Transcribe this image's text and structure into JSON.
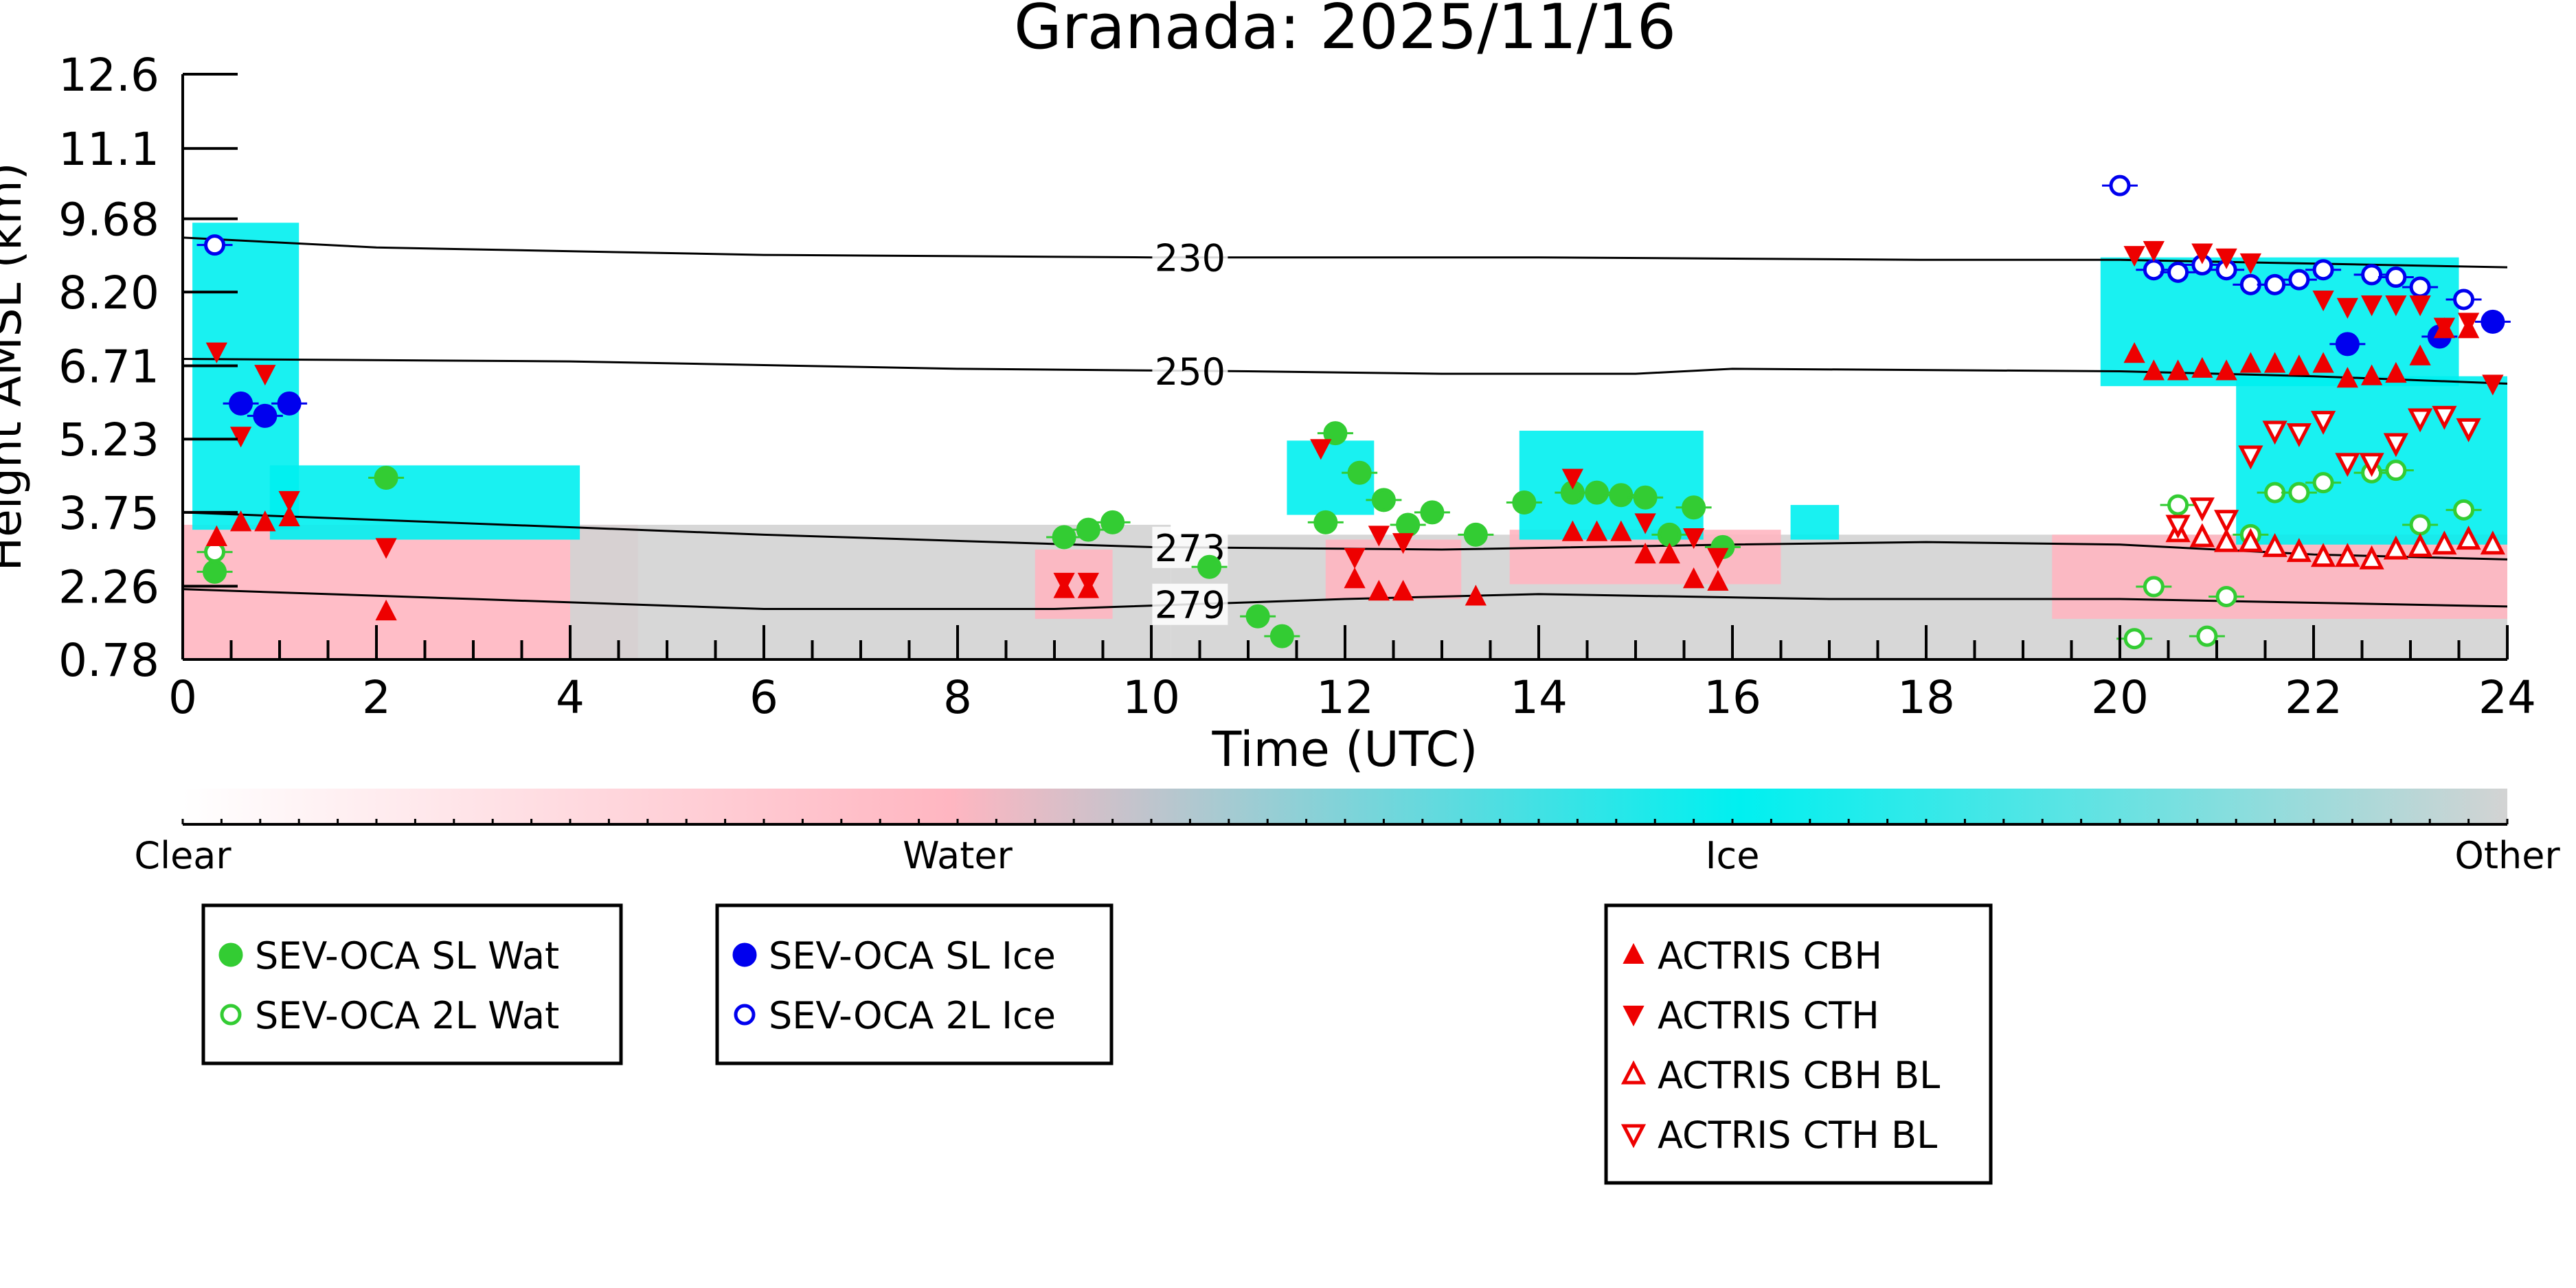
{
  "chart_data": {
    "type": "scatter",
    "title": "Granada: 2025/11/16",
    "xlabel": "Time (UTC)",
    "ylabel": "Height AMSL (km)",
    "xlim": [
      0,
      24
    ],
    "ylim": [
      0.78,
      12.6
    ],
    "xticks": [
      "0",
      "2",
      "4",
      "6",
      "8",
      "10",
      "12",
      "14",
      "16",
      "18",
      "20",
      "22",
      "24"
    ],
    "yticks": [
      "0.78",
      "2.26",
      "3.75",
      "5.23",
      "6.71",
      "8.20",
      "9.68",
      "11.1",
      "12.6"
    ],
    "colorbar": {
      "labels": [
        "Clear",
        "Water",
        "Ice",
        "Other"
      ],
      "colors": [
        "#ffffff",
        "#ffb6c1",
        "#00f0f0",
        "#d3d3d3"
      ]
    },
    "isotherms": [
      {
        "label": "230",
        "points": [
          [
            0,
            9.3
          ],
          [
            2,
            9.1
          ],
          [
            6,
            8.95
          ],
          [
            10,
            8.9
          ],
          [
            14,
            8.9
          ],
          [
            18,
            8.85
          ],
          [
            20,
            8.85
          ],
          [
            24,
            8.7
          ]
        ]
      },
      {
        "label": "250",
        "points": [
          [
            0,
            6.85
          ],
          [
            4,
            6.8
          ],
          [
            8,
            6.65
          ],
          [
            11,
            6.6
          ],
          [
            13,
            6.55
          ],
          [
            15,
            6.55
          ],
          [
            16,
            6.65
          ],
          [
            20,
            6.6
          ],
          [
            22,
            6.5
          ],
          [
            24,
            6.35
          ]
        ]
      },
      {
        "label": "273",
        "points": [
          [
            0,
            3.75
          ],
          [
            2,
            3.6
          ],
          [
            6,
            3.3
          ],
          [
            10,
            3.05
          ],
          [
            13,
            3.0
          ],
          [
            16,
            3.1
          ],
          [
            18,
            3.15
          ],
          [
            20,
            3.1
          ],
          [
            22,
            2.9
          ],
          [
            24,
            2.8
          ]
        ]
      },
      {
        "label": "279",
        "points": [
          [
            0,
            2.2
          ],
          [
            3,
            2.0
          ],
          [
            6,
            1.8
          ],
          [
            9,
            1.8
          ],
          [
            12,
            2.0
          ],
          [
            14,
            2.1
          ],
          [
            17,
            2.0
          ],
          [
            20,
            2.0
          ],
          [
            24,
            1.85
          ]
        ]
      }
    ],
    "cloud_mask": [
      {
        "phase": "water",
        "x0": 0.0,
        "x1": 4.7,
        "y0": 0.78,
        "y1": 3.5
      },
      {
        "phase": "other",
        "x0": 4.0,
        "x1": 10.2,
        "y0": 0.78,
        "y1": 3.5
      },
      {
        "phase": "water",
        "x0": 8.8,
        "x1": 9.6,
        "y0": 1.6,
        "y1": 3.0
      },
      {
        "phase": "other",
        "x0": 10.2,
        "x1": 24.0,
        "y0": 0.78,
        "y1": 3.3
      },
      {
        "phase": "water",
        "x0": 11.8,
        "x1": 13.2,
        "y0": 2.0,
        "y1": 3.2
      },
      {
        "phase": "water",
        "x0": 13.7,
        "x1": 16.5,
        "y0": 2.3,
        "y1": 3.4
      },
      {
        "phase": "water",
        "x0": 19.3,
        "x1": 24.0,
        "y0": 1.6,
        "y1": 3.3
      },
      {
        "phase": "ice",
        "x0": 0.1,
        "x1": 1.2,
        "y0": 3.4,
        "y1": 9.6
      },
      {
        "phase": "ice",
        "x0": 0.9,
        "x1": 4.1,
        "y0": 3.2,
        "y1": 4.7
      },
      {
        "phase": "ice",
        "x0": 11.4,
        "x1": 12.3,
        "y0": 3.7,
        "y1": 5.2
      },
      {
        "phase": "ice",
        "x0": 13.8,
        "x1": 15.7,
        "y0": 3.2,
        "y1": 5.4
      },
      {
        "phase": "ice",
        "x0": 16.6,
        "x1": 17.1,
        "y0": 3.2,
        "y1": 3.9
      },
      {
        "phase": "ice",
        "x0": 19.8,
        "x1": 23.5,
        "y0": 6.3,
        "y1": 8.9
      },
      {
        "phase": "ice",
        "x0": 21.2,
        "x1": 24.0,
        "y0": 3.1,
        "y1": 6.5
      }
    ],
    "series": [
      {
        "name": "SEV-OCA SL Wat",
        "marker": "filled-circle",
        "color": "#33cc33",
        "points": [
          [
            0.33,
            2.55
          ],
          [
            2.1,
            4.45
          ],
          [
            9.1,
            3.25
          ],
          [
            9.35,
            3.4
          ],
          [
            9.6,
            3.55
          ],
          [
            10.6,
            2.65
          ],
          [
            11.1,
            1.65
          ],
          [
            11.35,
            1.25
          ],
          [
            11.8,
            3.55
          ],
          [
            11.9,
            5.35
          ],
          [
            12.15,
            4.55
          ],
          [
            12.4,
            4.0
          ],
          [
            12.65,
            3.5
          ],
          [
            12.9,
            3.75
          ],
          [
            13.35,
            3.3
          ],
          [
            13.85,
            3.95
          ],
          [
            14.35,
            4.15
          ],
          [
            14.6,
            4.15
          ],
          [
            14.85,
            4.1
          ],
          [
            15.1,
            4.05
          ],
          [
            15.35,
            3.3
          ],
          [
            15.6,
            3.85
          ],
          [
            15.9,
            3.05
          ]
        ]
      },
      {
        "name": "SEV-OCA 2L Wat",
        "marker": "open-circle",
        "color": "#33cc33",
        "points": [
          [
            0.33,
            2.95
          ],
          [
            20.15,
            1.2
          ],
          [
            20.35,
            2.25
          ],
          [
            20.6,
            3.9
          ],
          [
            20.9,
            1.25
          ],
          [
            21.1,
            2.05
          ],
          [
            21.35,
            3.3
          ],
          [
            21.6,
            4.15
          ],
          [
            21.85,
            4.15
          ],
          [
            22.1,
            4.35
          ],
          [
            22.6,
            4.55
          ],
          [
            22.85,
            4.6
          ],
          [
            23.1,
            3.5
          ],
          [
            23.55,
            3.8
          ]
        ]
      },
      {
        "name": "SEV-OCA SL Ice",
        "marker": "filled-circle",
        "color": "#0000ee",
        "points": [
          [
            0.6,
            5.95
          ],
          [
            0.85,
            5.7
          ],
          [
            1.1,
            5.95
          ],
          [
            22.35,
            7.15
          ],
          [
            23.3,
            7.3
          ],
          [
            23.85,
            7.6
          ]
        ]
      },
      {
        "name": "SEV-OCA 2L Ice",
        "marker": "open-circle",
        "color": "#0000ee",
        "points": [
          [
            0.33,
            9.15
          ],
          [
            20.0,
            10.35
          ],
          [
            20.35,
            8.65
          ],
          [
            20.6,
            8.6
          ],
          [
            20.85,
            8.75
          ],
          [
            21.1,
            8.65
          ],
          [
            21.35,
            8.35
          ],
          [
            21.6,
            8.35
          ],
          [
            21.85,
            8.45
          ],
          [
            22.1,
            8.65
          ],
          [
            22.6,
            8.55
          ],
          [
            22.85,
            8.5
          ],
          [
            23.1,
            8.3
          ],
          [
            23.55,
            8.05
          ]
        ]
      },
      {
        "name": "ACTRIS CBH",
        "marker": "filled-triangle-up",
        "color": "#ee0000",
        "points": [
          [
            0.35,
            3.25
          ],
          [
            0.6,
            3.55
          ],
          [
            0.85,
            3.55
          ],
          [
            1.1,
            3.65
          ],
          [
            2.1,
            1.75
          ],
          [
            9.1,
            2.2
          ],
          [
            9.35,
            2.2
          ],
          [
            12.1,
            2.4
          ],
          [
            12.35,
            2.15
          ],
          [
            12.6,
            2.15
          ],
          [
            13.35,
            2.05
          ],
          [
            14.35,
            3.35
          ],
          [
            14.6,
            3.35
          ],
          [
            14.85,
            3.35
          ],
          [
            15.1,
            2.9
          ],
          [
            15.35,
            2.9
          ],
          [
            15.6,
            2.4
          ],
          [
            15.85,
            2.35
          ],
          [
            20.15,
            6.95
          ],
          [
            20.35,
            6.6
          ],
          [
            20.6,
            6.6
          ],
          [
            20.85,
            6.65
          ],
          [
            21.1,
            6.6
          ],
          [
            21.35,
            6.75
          ],
          [
            21.6,
            6.75
          ],
          [
            21.85,
            6.7
          ],
          [
            22.1,
            6.75
          ],
          [
            22.35,
            6.45
          ],
          [
            22.6,
            6.5
          ],
          [
            22.85,
            6.55
          ],
          [
            23.1,
            6.9
          ],
          [
            23.35,
            7.45
          ],
          [
            23.6,
            7.45
          ]
        ]
      },
      {
        "name": "ACTRIS CTH",
        "marker": "filled-triangle-down",
        "color": "#ee0000",
        "points": [
          [
            0.35,
            7.0
          ],
          [
            0.6,
            5.3
          ],
          [
            0.85,
            6.55
          ],
          [
            1.1,
            4.0
          ],
          [
            2.1,
            3.05
          ],
          [
            9.1,
            2.35
          ],
          [
            9.35,
            2.35
          ],
          [
            11.75,
            5.05
          ],
          [
            12.1,
            2.85
          ],
          [
            12.35,
            3.3
          ],
          [
            12.6,
            3.15
          ],
          [
            14.35,
            4.45
          ],
          [
            15.1,
            3.55
          ],
          [
            15.6,
            3.25
          ],
          [
            15.85,
            2.85
          ],
          [
            20.15,
            8.95
          ],
          [
            20.35,
            9.05
          ],
          [
            20.85,
            9.0
          ],
          [
            21.1,
            8.9
          ],
          [
            21.35,
            8.8
          ],
          [
            22.1,
            8.05
          ],
          [
            22.35,
            7.9
          ],
          [
            22.6,
            7.95
          ],
          [
            22.85,
            7.95
          ],
          [
            23.1,
            7.95
          ],
          [
            23.35,
            7.5
          ],
          [
            23.6,
            7.6
          ],
          [
            23.85,
            6.35
          ]
        ]
      },
      {
        "name": "ACTRIS CBH BL",
        "marker": "open-triangle-up",
        "color": "#ee0000",
        "points": [
          [
            20.6,
            3.35
          ],
          [
            20.85,
            3.25
          ],
          [
            21.1,
            3.15
          ],
          [
            21.35,
            3.15
          ],
          [
            21.6,
            3.05
          ],
          [
            21.85,
            2.95
          ],
          [
            22.1,
            2.85
          ],
          [
            22.35,
            2.85
          ],
          [
            22.6,
            2.8
          ],
          [
            22.85,
            3.0
          ],
          [
            23.1,
            3.05
          ],
          [
            23.35,
            3.1
          ],
          [
            23.6,
            3.2
          ],
          [
            23.85,
            3.1
          ]
        ]
      },
      {
        "name": "ACTRIS CTH BL",
        "marker": "open-triangle-down",
        "color": "#ee0000",
        "points": [
          [
            20.6,
            3.5
          ],
          [
            20.85,
            3.85
          ],
          [
            21.1,
            3.6
          ],
          [
            21.35,
            4.9
          ],
          [
            21.6,
            5.4
          ],
          [
            21.85,
            5.35
          ],
          [
            22.1,
            5.6
          ],
          [
            22.35,
            4.75
          ],
          [
            22.6,
            4.75
          ],
          [
            22.85,
            5.15
          ],
          [
            23.1,
            5.65
          ],
          [
            23.35,
            5.7
          ],
          [
            23.6,
            5.45
          ]
        ]
      }
    ]
  }
}
